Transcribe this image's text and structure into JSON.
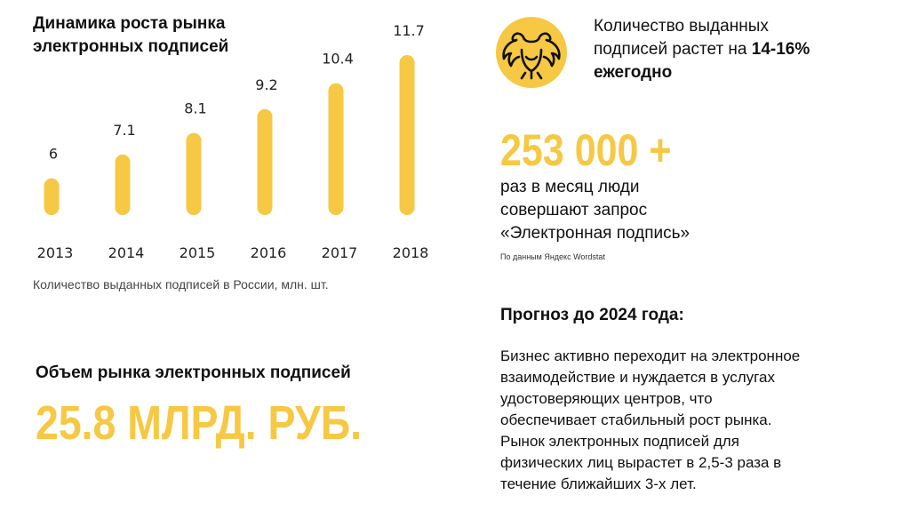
{
  "colors": {
    "accent": "#f6c843",
    "text": "#111111",
    "muted": "#444444"
  },
  "chart_data": {
    "type": "bar",
    "title": "Динамика роста рынка электронных подписей",
    "caption": "Количество выданных подписей в России, млн. шт.",
    "categories": [
      "2013",
      "2014",
      "2015",
      "2016",
      "2017",
      "2018"
    ],
    "values": [
      6,
      7.1,
      8.1,
      9.2,
      10.4,
      11.7
    ],
    "value_labels": [
      "6",
      "7.1",
      "8.1",
      "9.2",
      "10.4",
      "11.7"
    ],
    "xlabel": "",
    "ylabel": "",
    "grid": false
  },
  "growth": {
    "icon": "double-headed-eagle-icon",
    "line1": "Количество выданных",
    "line2": "подписей растет на ",
    "highlight": "14-16%",
    "line3": "ежегодно"
  },
  "search": {
    "big_number": "253 000 +",
    "line1": "раз в месяц люди",
    "line2": "совершают запрос",
    "line3": "«Электронная подпись»",
    "source": "По данным Яндекс Wordstat"
  },
  "forecast": {
    "title": "Прогноз до 2024 года:",
    "lines": [
      "Бизнес активно переходит на электронное",
      "взаимодействие и нуждается в услугах",
      "удостоверяющих центров, что",
      "обеспечивает стабильный рост рынка.",
      "Рынок электронных подписей для",
      "физических лиц вырастет в 2,5-3 раза в",
      "течение ближайших 3-х лет."
    ]
  },
  "market": {
    "title": "Объем рынка электронных подписей",
    "value": "25.8 МЛРД. РУБ."
  }
}
